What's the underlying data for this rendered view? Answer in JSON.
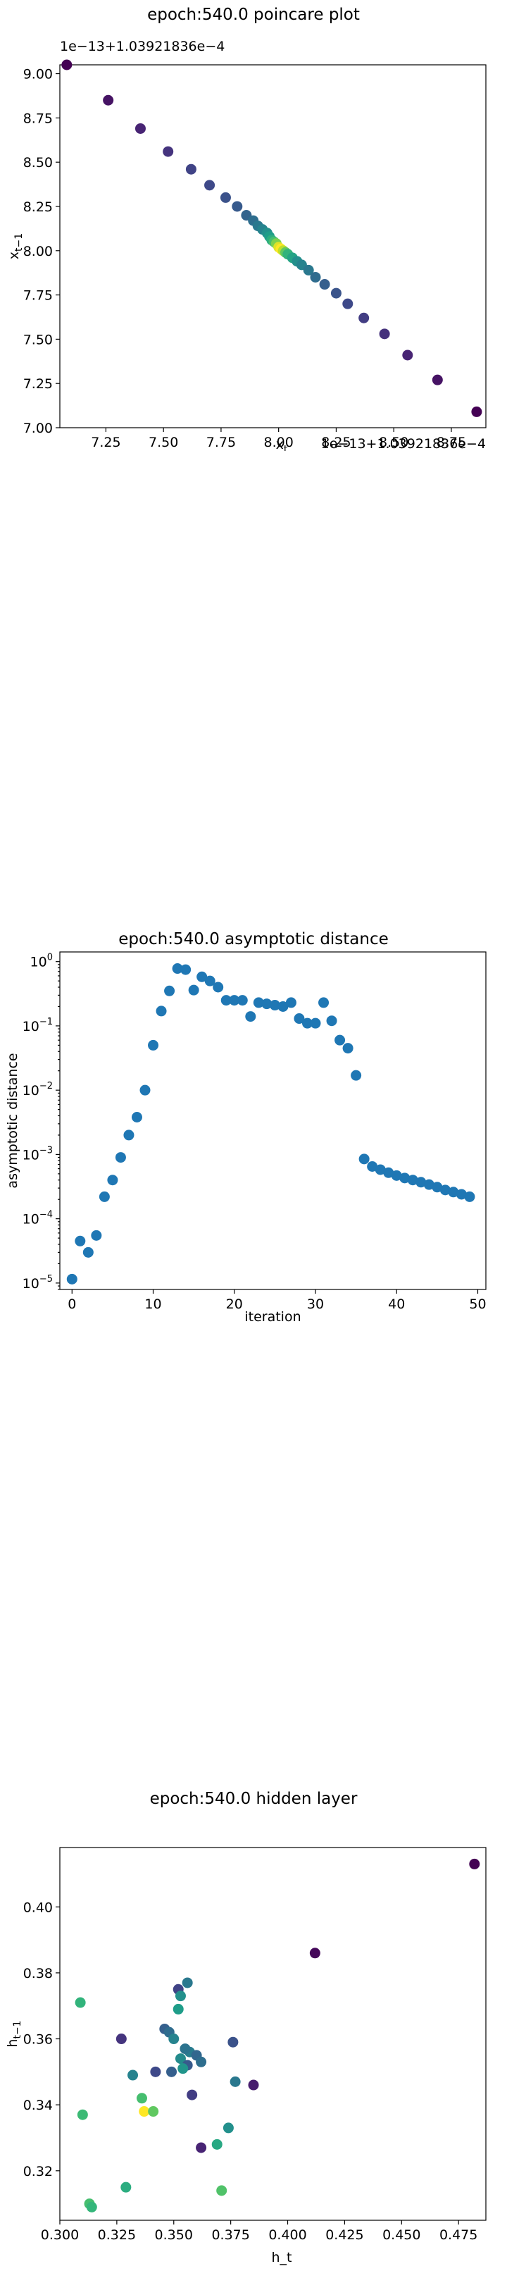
{
  "chart_data": [
    {
      "type": "scatter",
      "title": "epoch:540.0 poincare plot",
      "xlabel": "x_t",
      "ylabel": "x_{t−1}",
      "x_offset_text": "1e−13+1.03921836e−4",
      "y_offset_text": "1e−13+1.03921836e−4",
      "xlim": [
        7.05,
        8.9
      ],
      "ylim": [
        7.0,
        9.05
      ],
      "xticks": [
        7.25,
        7.5,
        7.75,
        8.0,
        8.25,
        8.5,
        8.75
      ],
      "xtick_labels": [
        "7.25",
        "7.50",
        "7.75",
        "8.00",
        "8.25",
        "8.50",
        "8.75"
      ],
      "yticks": [
        7.0,
        7.25,
        7.5,
        7.75,
        8.0,
        8.25,
        8.5,
        8.75,
        9.0
      ],
      "ytick_labels": [
        "7.00",
        "7.25",
        "7.50",
        "7.75",
        "8.00",
        "8.25",
        "8.50",
        "8.75",
        "9.00"
      ],
      "colormap": "viridis",
      "points": [
        {
          "x": 7.08,
          "y": 9.05,
          "c": 0.0
        },
        {
          "x": 7.26,
          "y": 8.85,
          "c": 0.05
        },
        {
          "x": 7.4,
          "y": 8.69,
          "c": 0.1
        },
        {
          "x": 7.52,
          "y": 8.56,
          "c": 0.15
        },
        {
          "x": 7.62,
          "y": 8.46,
          "c": 0.2
        },
        {
          "x": 7.7,
          "y": 8.37,
          "c": 0.22
        },
        {
          "x": 7.77,
          "y": 8.3,
          "c": 0.25
        },
        {
          "x": 7.82,
          "y": 8.25,
          "c": 0.28
        },
        {
          "x": 7.86,
          "y": 8.2,
          "c": 0.32
        },
        {
          "x": 7.89,
          "y": 8.17,
          "c": 0.36
        },
        {
          "x": 7.91,
          "y": 8.14,
          "c": 0.4
        },
        {
          "x": 7.93,
          "y": 8.12,
          "c": 0.45
        },
        {
          "x": 7.95,
          "y": 8.1,
          "c": 0.5
        },
        {
          "x": 7.96,
          "y": 8.08,
          "c": 0.55
        },
        {
          "x": 7.97,
          "y": 8.06,
          "c": 0.62
        },
        {
          "x": 7.98,
          "y": 8.05,
          "c": 0.7
        },
        {
          "x": 7.99,
          "y": 8.04,
          "c": 0.8
        },
        {
          "x": 8.0,
          "y": 8.02,
          "c": 0.95
        },
        {
          "x": 8.01,
          "y": 8.01,
          "c": 1.0
        },
        {
          "x": 8.02,
          "y": 8.0,
          "c": 0.9
        },
        {
          "x": 8.03,
          "y": 7.99,
          "c": 0.75
        },
        {
          "x": 8.04,
          "y": 7.98,
          "c": 0.65
        },
        {
          "x": 8.06,
          "y": 7.96,
          "c": 0.58
        },
        {
          "x": 8.08,
          "y": 7.94,
          "c": 0.5
        },
        {
          "x": 8.1,
          "y": 7.92,
          "c": 0.45
        },
        {
          "x": 8.13,
          "y": 7.89,
          "c": 0.4
        },
        {
          "x": 8.16,
          "y": 7.85,
          "c": 0.35
        },
        {
          "x": 8.2,
          "y": 7.81,
          "c": 0.3
        },
        {
          "x": 8.25,
          "y": 7.76,
          "c": 0.26
        },
        {
          "x": 8.3,
          "y": 7.7,
          "c": 0.22
        },
        {
          "x": 8.37,
          "y": 7.62,
          "c": 0.18
        },
        {
          "x": 8.46,
          "y": 7.53,
          "c": 0.14
        },
        {
          "x": 8.56,
          "y": 7.41,
          "c": 0.1
        },
        {
          "x": 8.69,
          "y": 7.27,
          "c": 0.05
        },
        {
          "x": 8.86,
          "y": 7.09,
          "c": 0.0
        }
      ]
    },
    {
      "type": "scatter",
      "title": "epoch:540.0 asymptotic distance",
      "xlabel": "iteration",
      "ylabel": "asymptotic distance",
      "yscale": "log",
      "xlim": [
        -1.5,
        51
      ],
      "ylim_log10": [
        -5.1,
        0.15
      ],
      "xticks": [
        0,
        10,
        20,
        30,
        40,
        50
      ],
      "xtick_labels": [
        "0",
        "10",
        "20",
        "30",
        "40",
        "50"
      ],
      "ytick_exponents": [
        -5,
        -4,
        -3,
        -2,
        -1,
        0
      ],
      "ytick_labels": [
        "10",
        "10",
        "10",
        "10",
        "10",
        "10"
      ],
      "ytick_label_exps": [
        "−5",
        "−4",
        "−3",
        "−2",
        "−1",
        "0"
      ],
      "color": "#1f77b4",
      "x": [
        0,
        1,
        2,
        3,
        4,
        5,
        6,
        7,
        8,
        9,
        10,
        11,
        12,
        13,
        14,
        15,
        16,
        17,
        18,
        19,
        20,
        21,
        22,
        23,
        24,
        25,
        26,
        27,
        28,
        29,
        30,
        31,
        32,
        33,
        34,
        35,
        36,
        37,
        38,
        39,
        40,
        41,
        42,
        43,
        44,
        45,
        46,
        47,
        48,
        49
      ],
      "y": [
        1.15e-05,
        4.5e-05,
        3e-05,
        5.5e-05,
        0.00022,
        0.0004,
        0.0009,
        0.002,
        0.0038,
        0.01,
        0.05,
        0.17,
        0.35,
        0.78,
        0.75,
        0.36,
        0.58,
        0.5,
        0.4,
        0.25,
        0.25,
        0.25,
        0.14,
        0.23,
        0.22,
        0.21,
        0.2,
        0.23,
        0.13,
        0.11,
        0.11,
        0.23,
        0.12,
        0.06,
        0.045,
        0.017,
        0.00085,
        0.00065,
        0.00058,
        0.00052,
        0.00047,
        0.00043,
        0.0004,
        0.00037,
        0.00034,
        0.00031,
        0.00028,
        0.00026,
        0.00024,
        0.00022
      ]
    },
    {
      "type": "scatter",
      "title": "epoch:540.0 hidden layer",
      "xlabel": "h_t",
      "ylabel": "h_{t−1}",
      "xlim": [
        0.3,
        0.487
      ],
      "ylim": [
        0.305,
        0.418
      ],
      "xticks": [
        0.3,
        0.325,
        0.35,
        0.375,
        0.4,
        0.425,
        0.45,
        0.475
      ],
      "xtick_labels": [
        "0.300",
        "0.325",
        "0.350",
        "0.375",
        "0.400",
        "0.425",
        "0.450",
        "0.475"
      ],
      "yticks": [
        0.32,
        0.34,
        0.36,
        0.38,
        0.4
      ],
      "ytick_labels": [
        "0.32",
        "0.34",
        "0.36",
        "0.38",
        "0.40"
      ],
      "colormap": "viridis",
      "points": [
        {
          "x": 0.482,
          "y": 0.413,
          "c": 0.0
        },
        {
          "x": 0.412,
          "y": 0.386,
          "c": 0.02
        },
        {
          "x": 0.309,
          "y": 0.371,
          "c": 0.65
        },
        {
          "x": 0.356,
          "y": 0.377,
          "c": 0.4
        },
        {
          "x": 0.352,
          "y": 0.375,
          "c": 0.2
        },
        {
          "x": 0.353,
          "y": 0.373,
          "c": 0.5
        },
        {
          "x": 0.352,
          "y": 0.369,
          "c": 0.55
        },
        {
          "x": 0.346,
          "y": 0.363,
          "c": 0.3
        },
        {
          "x": 0.348,
          "y": 0.362,
          "c": 0.35
        },
        {
          "x": 0.327,
          "y": 0.36,
          "c": 0.15
        },
        {
          "x": 0.35,
          "y": 0.36,
          "c": 0.45
        },
        {
          "x": 0.376,
          "y": 0.359,
          "c": 0.25
        },
        {
          "x": 0.357,
          "y": 0.356,
          "c": 0.42
        },
        {
          "x": 0.355,
          "y": 0.357,
          "c": 0.38
        },
        {
          "x": 0.36,
          "y": 0.355,
          "c": 0.33
        },
        {
          "x": 0.353,
          "y": 0.354,
          "c": 0.48
        },
        {
          "x": 0.362,
          "y": 0.353,
          "c": 0.36
        },
        {
          "x": 0.356,
          "y": 0.352,
          "c": 0.28
        },
        {
          "x": 0.354,
          "y": 0.351,
          "c": 0.52
        },
        {
          "x": 0.349,
          "y": 0.35,
          "c": 0.3
        },
        {
          "x": 0.342,
          "y": 0.35,
          "c": 0.22
        },
        {
          "x": 0.332,
          "y": 0.349,
          "c": 0.45
        },
        {
          "x": 0.377,
          "y": 0.347,
          "c": 0.4
        },
        {
          "x": 0.385,
          "y": 0.346,
          "c": 0.08
        },
        {
          "x": 0.358,
          "y": 0.343,
          "c": 0.18
        },
        {
          "x": 0.336,
          "y": 0.342,
          "c": 0.7
        },
        {
          "x": 0.369,
          "y": 0.328,
          "c": 0.6
        },
        {
          "x": 0.374,
          "y": 0.333,
          "c": 0.5
        },
        {
          "x": 0.31,
          "y": 0.337,
          "c": 0.68
        },
        {
          "x": 0.337,
          "y": 0.338,
          "c": 1.0
        },
        {
          "x": 0.341,
          "y": 0.338,
          "c": 0.75
        },
        {
          "x": 0.362,
          "y": 0.327,
          "c": 0.1
        },
        {
          "x": 0.329,
          "y": 0.315,
          "c": 0.62
        },
        {
          "x": 0.371,
          "y": 0.314,
          "c": 0.72
        },
        {
          "x": 0.313,
          "y": 0.31,
          "c": 0.7
        },
        {
          "x": 0.314,
          "y": 0.309,
          "c": 0.66
        }
      ]
    }
  ]
}
